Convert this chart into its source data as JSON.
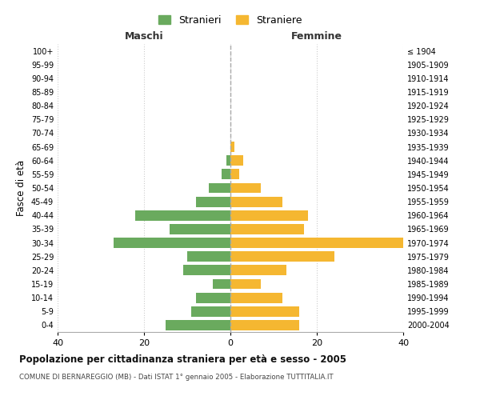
{
  "age_groups": [
    "0-4",
    "5-9",
    "10-14",
    "15-19",
    "20-24",
    "25-29",
    "30-34",
    "35-39",
    "40-44",
    "45-49",
    "50-54",
    "55-59",
    "60-64",
    "65-69",
    "70-74",
    "75-79",
    "80-84",
    "85-89",
    "90-94",
    "95-99",
    "100+"
  ],
  "birth_years": [
    "2000-2004",
    "1995-1999",
    "1990-1994",
    "1985-1989",
    "1980-1984",
    "1975-1979",
    "1970-1974",
    "1965-1969",
    "1960-1964",
    "1955-1959",
    "1950-1954",
    "1945-1949",
    "1940-1944",
    "1935-1939",
    "1930-1934",
    "1925-1929",
    "1920-1924",
    "1915-1919",
    "1910-1914",
    "1905-1909",
    "≤ 1904"
  ],
  "maschi": [
    15,
    9,
    8,
    4,
    11,
    10,
    27,
    14,
    22,
    8,
    5,
    2,
    1,
    0,
    0,
    0,
    0,
    0,
    0,
    0,
    0
  ],
  "femmine": [
    16,
    16,
    12,
    7,
    13,
    24,
    40,
    17,
    18,
    12,
    7,
    2,
    3,
    1,
    0,
    0,
    0,
    0,
    0,
    0,
    0
  ],
  "maschi_color": "#6aaa5e",
  "femmine_color": "#f5b731",
  "background_color": "#ffffff",
  "grid_color": "#cccccc",
  "xlim": [
    -40,
    40
  ],
  "xticks": [
    -40,
    -20,
    0,
    20,
    40
  ],
  "xtick_labels": [
    "40",
    "20",
    "0",
    "20",
    "40"
  ],
  "title": "Popolazione per cittadinanza straniera per età e sesso - 2005",
  "subtitle": "COMUNE DI BERNAREGGIO (MB) - Dati ISTAT 1° gennaio 2005 - Elaborazione TUTTITALIA.IT",
  "ylabel_left": "Fasce di età",
  "header_left": "Maschi",
  "header_right": "Femmine",
  "legend_stranieri": "Stranieri",
  "legend_straniere": "Straniere",
  "bar_height": 0.75
}
